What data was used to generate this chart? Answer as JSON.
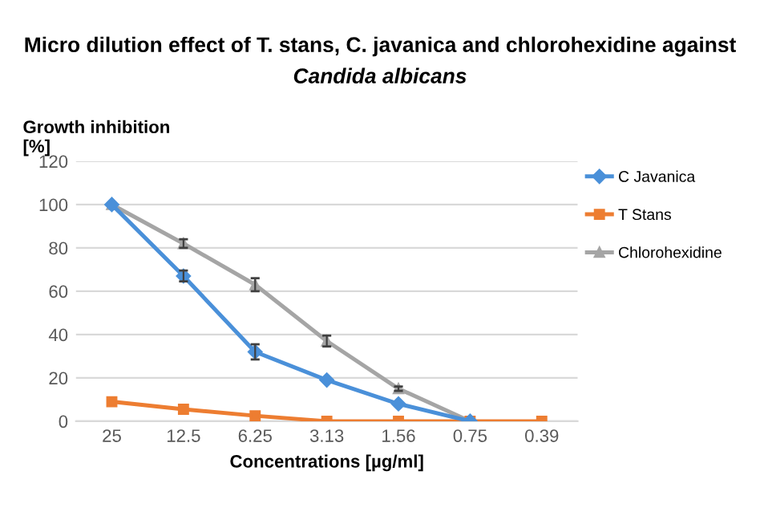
{
  "chart_data": {
    "type": "line",
    "title": "Micro dilution effect of T. stans, C. javanica and chlorohexidine against\nCandida albicans",
    "xlabel": "Concentrations [µg/ml]",
    "ylabel": "Growth inhibition\n[%]",
    "categories": [
      "25",
      "12.5",
      "6.25",
      "3.13",
      "1.56",
      "0.75",
      "0.39"
    ],
    "series": [
      {
        "name": "C Javanica",
        "color": "#4a90d9",
        "marker": "diamond",
        "values": [
          100,
          67,
          32,
          19,
          8,
          0,
          null
        ],
        "errors": [
          null,
          2.5,
          3.5,
          null,
          null,
          null,
          null
        ]
      },
      {
        "name": "T Stans",
        "color": "#ed7d31",
        "marker": "square",
        "values": [
          9,
          5.5,
          2.5,
          0,
          0,
          0,
          0
        ]
      },
      {
        "name": "Chlorohexidine",
        "color": "#a5a5a5",
        "marker": "triangle",
        "values": [
          100,
          82,
          63,
          37,
          15,
          0,
          null
        ],
        "errors": [
          null,
          2,
          3,
          2.5,
          1,
          null,
          null
        ]
      }
    ],
    "ylim": [
      0,
      120
    ],
    "yticks": [
      0,
      20,
      40,
      60,
      80,
      100,
      120
    ],
    "grid": "y",
    "legend": "right"
  }
}
